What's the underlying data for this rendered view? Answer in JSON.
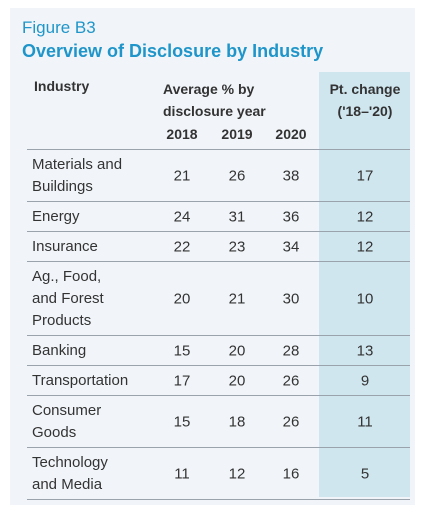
{
  "figure_label": "Figure B3",
  "title": "Overview of Disclosure by Industry",
  "headers": {
    "industry": "Industry",
    "average_line1": "Average % by",
    "average_line2": "disclosure year",
    "pt_change_line1": "Pt. change",
    "pt_change_line2": "('18–'20)"
  },
  "colors": {
    "accent": "#1f95c9",
    "highlight_column": "#cfe6ef",
    "panel_background": "#f1f5f9"
  },
  "chart_data": {
    "type": "table",
    "title": "Overview of Disclosure by Industry",
    "years": [
      "2018",
      "2019",
      "2020"
    ],
    "rows": [
      {
        "industry": [
          "Materials and",
          "Buildings"
        ],
        "values": [
          21,
          26,
          38
        ],
        "pt_change": 17
      },
      {
        "industry": [
          "Energy"
        ],
        "values": [
          24,
          31,
          36
        ],
        "pt_change": 12
      },
      {
        "industry": [
          "Insurance"
        ],
        "values": [
          22,
          23,
          34
        ],
        "pt_change": 12
      },
      {
        "industry": [
          "Ag., Food,",
          "and Forest",
          "Products"
        ],
        "values": [
          20,
          21,
          30
        ],
        "pt_change": 10
      },
      {
        "industry": [
          "Banking"
        ],
        "values": [
          15,
          20,
          28
        ],
        "pt_change": 13
      },
      {
        "industry": [
          "Transportation"
        ],
        "values": [
          17,
          20,
          26
        ],
        "pt_change": 9
      },
      {
        "industry": [
          "Consumer",
          "Goods"
        ],
        "values": [
          15,
          18,
          26
        ],
        "pt_change": 11
      },
      {
        "industry": [
          "Technology",
          "and Media"
        ],
        "values": [
          11,
          12,
          16
        ],
        "pt_change": 5
      }
    ]
  }
}
